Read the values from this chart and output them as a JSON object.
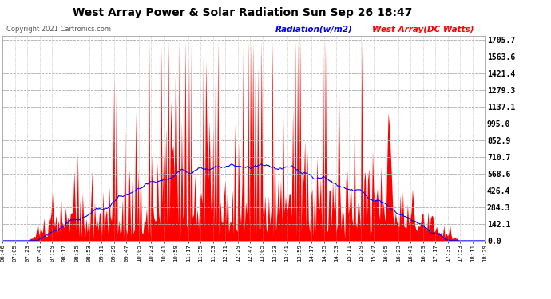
{
  "title": "West Array Power & Solar Radiation Sun Sep 26 18:47",
  "copyright": "Copyright 2021 Cartronics.com",
  "legend_radiation": "Radiation(w/m2)",
  "legend_west": "West Array(DC Watts)",
  "bg_color": "#ffffff",
  "plot_bg_color": "#ffffff",
  "grid_color": "#aaaaaa",
  "title_color": "#000000",
  "radiation_color": "#0000ff",
  "west_color": "#ff0000",
  "right_yticks": [
    0.0,
    142.1,
    284.3,
    426.4,
    568.6,
    710.7,
    852.9,
    995.0,
    1137.1,
    1279.3,
    1421.4,
    1563.6,
    1705.7
  ],
  "ymax": 1705.7,
  "ymin": 0.0,
  "xtick_labels": [
    "06:46",
    "07:05",
    "07:23",
    "07:41",
    "07:59",
    "08:17",
    "08:35",
    "08:53",
    "09:11",
    "09:29",
    "09:47",
    "10:05",
    "10:23",
    "10:41",
    "10:59",
    "11:17",
    "11:35",
    "11:53",
    "12:11",
    "12:29",
    "12:47",
    "13:05",
    "13:23",
    "13:41",
    "13:59",
    "14:17",
    "14:35",
    "14:53",
    "15:11",
    "15:29",
    "15:47",
    "16:05",
    "16:23",
    "16:41",
    "16:59",
    "17:17",
    "17:35",
    "17:53",
    "18:11",
    "18:29"
  ]
}
